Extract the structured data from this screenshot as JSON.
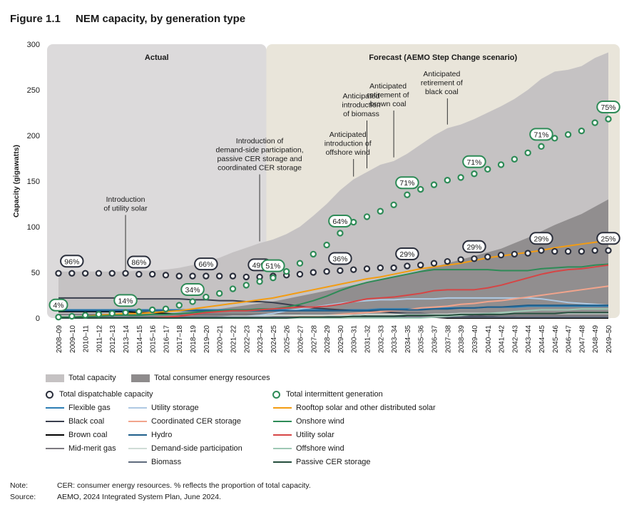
{
  "figure": {
    "number": "Figure 1.1",
    "title": "NEM capacity, by generation type"
  },
  "notes": {
    "note_label": "Note:",
    "note_text": "CER: consumer energy resources. % reflects the proportion of total capacity.",
    "source_label": "Source:",
    "source_text": "AEMO, 2024 Integrated System Plan, June 2024."
  },
  "chart_data": {
    "type": "area",
    "ylabel": "Capacity (gigawatts)",
    "ylim": [
      0,
      300
    ],
    "yticks": [
      0,
      50,
      100,
      150,
      200,
      250,
      300
    ],
    "x": [
      "2008–09",
      "2009–10",
      "2010–11",
      "2011–12",
      "2012–13",
      "2013–14",
      "2014–15",
      "2015–16",
      "2016–17",
      "2017–18",
      "2018–19",
      "2019–20",
      "2020–21",
      "2021–22",
      "2022–23",
      "2023–24",
      "2024–25",
      "2025–26",
      "2026–27",
      "2027–28",
      "2028–29",
      "2029–30",
      "2030–31",
      "2031–32",
      "2032–33",
      "2033–34",
      "2034–35",
      "2035–36",
      "2036–37",
      "2037–38",
      "2038–39",
      "2039–40",
      "2040–41",
      "2041–42",
      "2042–43",
      "2043–44",
      "2044–45",
      "2045–46",
      "2046–47",
      "2047–48",
      "2048–49",
      "2049–50"
    ],
    "regions": [
      {
        "label": "Actual",
        "from": "2008–09",
        "to": "2023–24",
        "color": "#dcdadb"
      },
      {
        "label": "Forecast (AEMO Step Change scenario)",
        "from": "2024–25",
        "to": "2049–50",
        "color": "#e9e5da"
      }
    ],
    "areas": [
      {
        "name": "Total capacity",
        "color": "#c5c2c3",
        "values": [
          51,
          51,
          51,
          51,
          51,
          51,
          52,
          52,
          53,
          55,
          58,
          62,
          66,
          72,
          77,
          82,
          86,
          92,
          100,
          112,
          125,
          140,
          152,
          160,
          168,
          172,
          180,
          190,
          200,
          208,
          212,
          218,
          225,
          232,
          240,
          250,
          262,
          270,
          272,
          276,
          285,
          291
        ]
      },
      {
        "name": "Total consumer energy resources",
        "color": "#8e8b8c",
        "values": [
          1,
          1,
          1,
          2,
          2,
          2,
          3,
          4,
          5,
          6,
          7,
          8,
          10,
          12,
          14,
          16,
          18,
          21,
          24,
          27,
          30,
          33,
          36,
          39,
          42,
          45,
          48,
          52,
          56,
          60,
          64,
          68,
          72,
          76,
          82,
          88,
          95,
          102,
          108,
          114,
          122,
          130
        ]
      }
    ],
    "series": [
      {
        "name": "Flexible gas",
        "color": "#2d7eb4",
        "values": [
          9,
          9,
          9,
          9,
          9,
          9,
          9,
          9,
          9,
          9,
          9,
          9,
          9,
          9,
          9,
          9,
          9,
          9,
          9,
          9,
          9,
          9,
          9,
          9,
          10,
          10,
          10,
          10,
          10,
          11,
          11,
          11,
          12,
          12,
          12,
          13,
          13,
          13,
          13,
          13,
          13,
          13
        ]
      },
      {
        "name": "Black coal",
        "color": "#3a3f4e",
        "values": [
          22,
          22,
          22,
          22,
          22,
          22,
          21,
          21,
          21,
          21,
          20,
          20,
          19,
          19,
          18,
          18,
          17,
          15,
          13,
          11,
          10,
          9,
          8,
          8,
          7,
          6,
          5,
          5,
          4,
          3,
          3,
          2,
          2,
          1,
          1,
          0,
          0,
          0,
          0,
          0,
          0,
          0
        ]
      },
      {
        "name": "Brown coal",
        "color": "#000000",
        "values": [
          7,
          7,
          7,
          7,
          7,
          7,
          6,
          6,
          5,
          4,
          4,
          4,
          4,
          4,
          4,
          4,
          4,
          4,
          4,
          3,
          3,
          3,
          3,
          2,
          2,
          2,
          1,
          1,
          1,
          0,
          0,
          0,
          0,
          0,
          0,
          0,
          0,
          0,
          0,
          0,
          0,
          0
        ]
      },
      {
        "name": "Mid-merit gas",
        "color": "#7d7a80",
        "values": [
          4,
          4,
          4,
          4,
          4,
          4,
          4,
          4,
          4,
          4,
          4,
          4,
          4,
          4,
          4,
          4,
          4,
          4,
          4,
          4,
          4,
          4,
          4,
          4,
          4,
          4,
          4,
          4,
          4,
          4,
          4,
          4,
          3,
          3,
          3,
          3,
          3,
          3,
          3,
          3,
          3,
          3
        ]
      },
      {
        "name": "Utility storage",
        "color": "#aec9e3",
        "values": [
          0,
          0,
          0,
          0,
          0,
          0,
          0,
          0,
          0,
          0,
          0,
          0,
          1,
          1,
          2,
          3,
          5,
          8,
          10,
          12,
          14,
          16,
          18,
          19,
          20,
          20,
          21,
          21,
          21,
          22,
          22,
          22,
          22,
          22,
          22,
          22,
          21,
          19,
          17,
          16,
          15,
          14
        ]
      },
      {
        "name": "Coordinated CER storage",
        "color": "#f2a48c",
        "values": [
          0,
          0,
          0,
          0,
          0,
          0,
          0,
          0,
          0,
          0,
          0,
          0,
          0,
          0,
          0,
          0,
          1,
          1,
          2,
          2,
          3,
          4,
          5,
          6,
          7,
          8,
          9,
          11,
          12,
          13,
          15,
          16,
          18,
          19,
          21,
          23,
          25,
          27,
          29,
          31,
          33,
          35
        ]
      },
      {
        "name": "Hydro",
        "color": "#1f5f8b",
        "values": [
          8,
          8,
          8,
          8,
          8,
          8,
          8,
          8,
          8,
          8,
          8,
          8,
          8,
          8,
          8,
          8,
          8,
          8,
          8,
          8,
          8,
          8,
          8,
          8,
          9,
          9,
          9,
          9,
          10,
          10,
          11,
          11,
          12,
          12,
          13,
          14,
          14,
          14,
          14,
          14,
          14,
          14
        ]
      },
      {
        "name": "Demand-side participation",
        "color": "#cfdcd6",
        "values": [
          0,
          0,
          0,
          0,
          0,
          0,
          0,
          0,
          0,
          0,
          0,
          0,
          1,
          2,
          2,
          2,
          3,
          3,
          3,
          3,
          3,
          3,
          3,
          4,
          4,
          4,
          4,
          4,
          4,
          4,
          5,
          5,
          5,
          5,
          5,
          5,
          5,
          5,
          5,
          5,
          5,
          5
        ]
      },
      {
        "name": "Biomass",
        "color": "#5f6b7d",
        "values": [
          1,
          1,
          1,
          1,
          1,
          1,
          1,
          1,
          1,
          1,
          1,
          1,
          1,
          1,
          1,
          1,
          1,
          1,
          1,
          1,
          1,
          1,
          1,
          1,
          1,
          1,
          1,
          1,
          1,
          1,
          1,
          1,
          1,
          1,
          1,
          1,
          1,
          1,
          1,
          1,
          1,
          1
        ]
      },
      {
        "name": "Rooftop solar and other distributed solar",
        "color": "#f39c12",
        "values": [
          0,
          1,
          2,
          3,
          4,
          5,
          5,
          6,
          7,
          8,
          10,
          12,
          14,
          16,
          18,
          20,
          22,
          25,
          28,
          31,
          34,
          37,
          40,
          43,
          45,
          48,
          51,
          54,
          56,
          58,
          60,
          63,
          66,
          68,
          70,
          72,
          74,
          77,
          79,
          81,
          83,
          85
        ]
      },
      {
        "name": "Onshore wind",
        "color": "#2e8b57",
        "values": [
          1,
          1,
          2,
          2,
          3,
          3,
          3,
          4,
          4,
          5,
          6,
          7,
          8,
          9,
          9,
          10,
          10,
          12,
          15,
          19,
          24,
          30,
          35,
          39,
          42,
          45,
          48,
          51,
          53,
          53,
          53,
          53,
          53,
          52,
          52,
          52,
          54,
          55,
          56,
          56,
          58,
          59
        ]
      },
      {
        "name": "Utility solar",
        "color": "#d64545",
        "values": [
          0,
          0,
          0,
          0,
          0,
          0,
          0,
          0,
          1,
          2,
          4,
          6,
          7,
          8,
          8,
          9,
          10,
          11,
          12,
          12,
          13,
          15,
          18,
          21,
          22,
          23,
          25,
          27,
          30,
          31,
          31,
          31,
          33,
          36,
          40,
          44,
          48,
          51,
          53,
          54,
          56,
          58
        ]
      },
      {
        "name": "Offshore wind",
        "color": "#9ec8b4",
        "values": [
          0,
          0,
          0,
          0,
          0,
          0,
          0,
          0,
          0,
          0,
          0,
          0,
          0,
          0,
          0,
          0,
          0,
          0,
          0,
          0,
          0,
          0,
          0,
          0,
          0,
          0,
          0,
          0,
          1,
          2,
          3,
          4,
          5,
          6,
          7,
          8,
          9,
          9,
          9,
          10,
          10,
          10
        ]
      },
      {
        "name": "Passive CER storage",
        "color": "#244d3c",
        "values": [
          0,
          0,
          0,
          0,
          0,
          0,
          0,
          0,
          0,
          0,
          0,
          0,
          0,
          0,
          0,
          0,
          0,
          0,
          1,
          1,
          1,
          1,
          2,
          2,
          2,
          2,
          3,
          3,
          3,
          3,
          4,
          4,
          4,
          4,
          5,
          5,
          5,
          5,
          6,
          6,
          6,
          6
        ]
      }
    ],
    "markers": [
      {
        "name": "Total dispatchable capacity",
        "color": "#2b2f3c",
        "values": [
          49,
          49,
          49,
          49,
          49,
          49,
          48,
          48,
          47,
          46,
          46,
          46,
          46,
          46,
          45,
          45,
          46,
          47,
          48,
          50,
          51,
          52,
          53,
          54,
          55,
          55,
          57,
          58,
          60,
          62,
          64,
          65,
          67,
          69,
          70,
          71,
          74,
          73,
          73,
          73,
          74,
          74
        ]
      },
      {
        "name": "Total intermittent generation",
        "color": "#2e8b57",
        "values": [
          1,
          2,
          3,
          4,
          5,
          6,
          7,
          9,
          10,
          14,
          18,
          23,
          27,
          32,
          36,
          40,
          44,
          51,
          60,
          70,
          80,
          93,
          105,
          111,
          117,
          124,
          135,
          141,
          146,
          151,
          154,
          158,
          163,
          168,
          174,
          181,
          188,
          197,
          201,
          205,
          214,
          218
        ]
      }
    ],
    "callouts": [
      {
        "text": "96%",
        "x": "2009–10",
        "series": "Total dispatchable capacity"
      },
      {
        "text": "86%",
        "x": "2014–15",
        "series": "Total dispatchable capacity"
      },
      {
        "text": "66%",
        "x": "2019–20",
        "series": "Total dispatchable capacity"
      },
      {
        "text": "49%",
        "x": "2023–24",
        "series": "Total dispatchable capacity"
      },
      {
        "text": "36%",
        "x": "2029–30",
        "series": "Total dispatchable capacity"
      },
      {
        "text": "29%",
        "x": "2034–35",
        "series": "Total dispatchable capacity"
      },
      {
        "text": "29%",
        "x": "2039–40",
        "series": "Total dispatchable capacity"
      },
      {
        "text": "29%",
        "x": "2044–45",
        "series": "Total dispatchable capacity"
      },
      {
        "text": "25%",
        "x": "2049–50",
        "series": "Total dispatchable capacity"
      },
      {
        "text": "4%",
        "x": "2008–09",
        "series": "Total intermittent generation"
      },
      {
        "text": "14%",
        "x": "2013–14",
        "series": "Total intermittent generation"
      },
      {
        "text": "34%",
        "x": "2018–19",
        "series": "Total intermittent generation"
      },
      {
        "text": "51%",
        "x": "2024–25",
        "series": "Total intermittent generation"
      },
      {
        "text": "64%",
        "x": "2029–30",
        "series": "Total intermittent generation"
      },
      {
        "text": "71%",
        "x": "2034–35",
        "series": "Total intermittent generation"
      },
      {
        "text": "71%",
        "x": "2039–40",
        "series": "Total intermittent generation"
      },
      {
        "text": "71%",
        "x": "2044–45",
        "series": "Total intermittent generation"
      },
      {
        "text": "75%",
        "x": "2049–50",
        "series": "Total intermittent generation"
      }
    ],
    "annotations": [
      {
        "lines": [
          "Introduction",
          "of utility solar"
        ],
        "x": "2013–14"
      },
      {
        "lines": [
          "Introduction of",
          "demand-side participation,",
          "passive CER storage and",
          "coordinated CER storage"
        ],
        "x": "2023–24"
      },
      {
        "lines": [
          "Anticipated",
          "introduction of",
          "offshore wind"
        ],
        "x": "2030–31"
      },
      {
        "lines": [
          "Anticipated",
          "introduction",
          "of biomass"
        ],
        "x": "2031–32"
      },
      {
        "lines": [
          "Anticipated",
          "retirement of",
          "brown coal"
        ],
        "x": "2033–34"
      },
      {
        "lines": [
          "Anticipated",
          "retirement of",
          "black coal"
        ],
        "x": "2037–38"
      }
    ]
  }
}
